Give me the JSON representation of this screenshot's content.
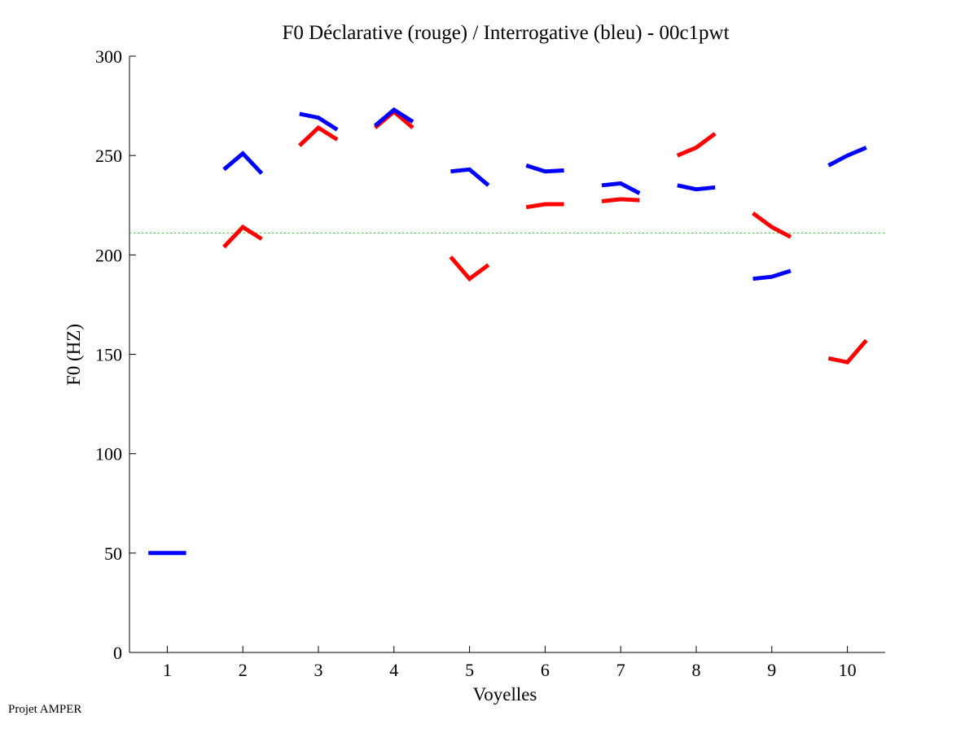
{
  "footer": {
    "note": "Projet AMPER"
  },
  "chart_data": {
    "type": "line",
    "title": "F0 Déclarative (rouge) / Interrogative (bleu) - 00c1pwt",
    "xlabel": "Voyelles",
    "ylabel": "F0 (HZ)",
    "xlim": [
      0.5,
      10.5
    ],
    "ylim": [
      0,
      300
    ],
    "xticks": [
      1,
      2,
      3,
      4,
      5,
      6,
      7,
      8,
      9,
      10
    ],
    "yticks": [
      0,
      50,
      100,
      150,
      200,
      250,
      300
    ],
    "grid": false,
    "reference_line": {
      "y": 211,
      "color": "#33cc33",
      "style": "dotted"
    },
    "series": [
      {
        "color": "#ff0000",
        "segments": [
          {
            "vowel": 2,
            "points": [
              [
                1.75,
                204
              ],
              [
                2.0,
                214
              ],
              [
                2.25,
                208
              ]
            ]
          },
          {
            "vowel": 3,
            "points": [
              [
                2.75,
                255
              ],
              [
                3.0,
                264
              ],
              [
                3.25,
                258
              ]
            ]
          },
          {
            "vowel": 4,
            "points": [
              [
                3.75,
                264
              ],
              [
                4.0,
                272
              ],
              [
                4.25,
                264
              ]
            ]
          },
          {
            "vowel": 5,
            "points": [
              [
                4.75,
                199
              ],
              [
                5.0,
                188
              ],
              [
                5.25,
                195
              ]
            ]
          },
          {
            "vowel": 6,
            "points": [
              [
                5.75,
                224
              ],
              [
                6.0,
                225.5
              ],
              [
                6.25,
                225.5
              ]
            ]
          },
          {
            "vowel": 7,
            "points": [
              [
                6.75,
                227
              ],
              [
                7.0,
                228
              ],
              [
                7.25,
                227.5
              ]
            ]
          },
          {
            "vowel": 8,
            "points": [
              [
                7.75,
                250
              ],
              [
                8.0,
                254
              ],
              [
                8.25,
                261
              ]
            ]
          },
          {
            "vowel": 9,
            "points": [
              [
                8.75,
                221
              ],
              [
                9.0,
                214
              ],
              [
                9.25,
                209
              ]
            ]
          },
          {
            "vowel": 10,
            "points": [
              [
                9.75,
                148
              ],
              [
                10.0,
                146
              ],
              [
                10.25,
                157
              ]
            ]
          }
        ]
      },
      {
        "color": "#0000ff",
        "segments": [
          {
            "vowel": 1,
            "points": [
              [
                0.75,
                50
              ],
              [
                1.0,
                50
              ],
              [
                1.25,
                50
              ]
            ]
          },
          {
            "vowel": 2,
            "points": [
              [
                1.75,
                243
              ],
              [
                2.0,
                251
              ],
              [
                2.25,
                241
              ]
            ]
          },
          {
            "vowel": 3,
            "points": [
              [
                2.75,
                271
              ],
              [
                3.0,
                269
              ],
              [
                3.25,
                263
              ]
            ]
          },
          {
            "vowel": 4,
            "points": [
              [
                3.75,
                265
              ],
              [
                4.0,
                273
              ],
              [
                4.25,
                267
              ]
            ]
          },
          {
            "vowel": 5,
            "points": [
              [
                4.75,
                242
              ],
              [
                5.0,
                243
              ],
              [
                5.25,
                235
              ]
            ]
          },
          {
            "vowel": 6,
            "points": [
              [
                5.75,
                245
              ],
              [
                6.0,
                242
              ],
              [
                6.25,
                242.5
              ]
            ]
          },
          {
            "vowel": 7,
            "points": [
              [
                6.75,
                235
              ],
              [
                7.0,
                236
              ],
              [
                7.25,
                231
              ]
            ]
          },
          {
            "vowel": 8,
            "points": [
              [
                7.75,
                235
              ],
              [
                8.0,
                233
              ],
              [
                8.25,
                234
              ]
            ]
          },
          {
            "vowel": 9,
            "points": [
              [
                8.75,
                188
              ],
              [
                9.0,
                189
              ],
              [
                9.25,
                192
              ]
            ]
          },
          {
            "vowel": 10,
            "points": [
              [
                9.75,
                245
              ],
              [
                10.0,
                250
              ],
              [
                10.25,
                254
              ]
            ]
          }
        ]
      }
    ]
  }
}
